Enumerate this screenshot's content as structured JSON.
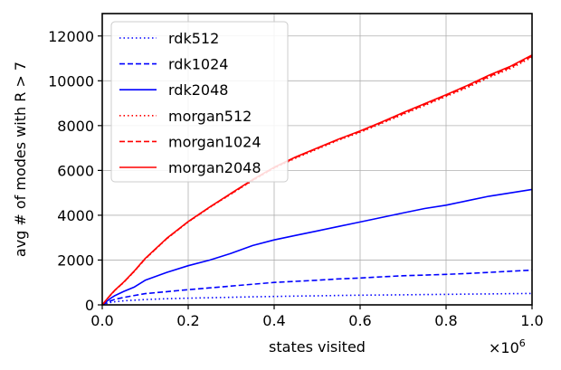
{
  "chart_data": {
    "type": "line",
    "xlabel": "states visited",
    "ylabel": "avg # of modes with R > 7",
    "x_multiplier": "×10",
    "x_multiplier_exp": "6",
    "xlim": [
      0,
      1
    ],
    "ylim": [
      0,
      13000
    ],
    "xticks": [
      0,
      0.2,
      0.4,
      0.6,
      0.8,
      1.0
    ],
    "xtick_labels": [
      "0.0",
      "0.2",
      "0.4",
      "0.6",
      "0.8",
      "1.0"
    ],
    "yticks": [
      0,
      2000,
      4000,
      6000,
      8000,
      10000,
      12000
    ],
    "ytick_labels": [
      "0",
      "2000",
      "4000",
      "6000",
      "8000",
      "10000",
      "12000"
    ],
    "grid": true,
    "legend_position": "top-left",
    "x": [
      0,
      0.01,
      0.02,
      0.03,
      0.05,
      0.075,
      0.1,
      0.15,
      0.2,
      0.25,
      0.3,
      0.35,
      0.4,
      0.45,
      0.5,
      0.55,
      0.6,
      0.65,
      0.7,
      0.75,
      0.8,
      0.85,
      0.9,
      0.95,
      1.0
    ],
    "series": [
      {
        "name": "rdk512",
        "color": "#0000ff",
        "dash": "dotted",
        "values": [
          0,
          60,
          110,
          140,
          180,
          210,
          240,
          275,
          300,
          320,
          340,
          360,
          375,
          390,
          405,
          420,
          430,
          440,
          450,
          460,
          470,
          480,
          490,
          500,
          510
        ]
      },
      {
        "name": "rdk1024",
        "color": "#0000ff",
        "dash": "dashed",
        "values": [
          0,
          100,
          180,
          250,
          330,
          420,
          500,
          590,
          680,
          760,
          840,
          920,
          1000,
          1050,
          1100,
          1160,
          1200,
          1250,
          1300,
          1330,
          1360,
          1400,
          1450,
          1500,
          1550
        ]
      },
      {
        "name": "rdk2048",
        "color": "#0000ff",
        "dash": "solid",
        "values": [
          0,
          150,
          300,
          420,
          600,
          800,
          1100,
          1450,
          1750,
          2000,
          2300,
          2650,
          2900,
          3100,
          3300,
          3500,
          3700,
          3900,
          4100,
          4300,
          4450,
          4650,
          4850,
          5000,
          5150
        ]
      },
      {
        "name": "morgan512",
        "color": "#ff0000",
        "dash": "dotted",
        "values": [
          0,
          230,
          450,
          660,
          1000,
          1500,
          2050,
          2950,
          3700,
          4350,
          4950,
          5550,
          6100,
          6550,
          6950,
          7350,
          7700,
          8100,
          8500,
          8900,
          9300,
          9700,
          10150,
          10550,
          11050
        ]
      },
      {
        "name": "morgan1024",
        "color": "#ff0000",
        "dash": "dashed",
        "values": [
          0,
          235,
          455,
          665,
          1010,
          1510,
          2060,
          2960,
          3710,
          4360,
          4960,
          5570,
          6120,
          6580,
          6980,
          7380,
          7730,
          8130,
          8540,
          8940,
          9340,
          9750,
          10200,
          10600,
          11100
        ]
      },
      {
        "name": "morgan2048",
        "color": "#ff0000",
        "dash": "solid",
        "values": [
          0,
          240,
          460,
          670,
          1020,
          1520,
          2070,
          2970,
          3720,
          4370,
          4980,
          5590,
          6140,
          6600,
          7000,
          7400,
          7760,
          8160,
          8580,
          8980,
          9380,
          9800,
          10250,
          10650,
          11150
        ]
      }
    ]
  }
}
